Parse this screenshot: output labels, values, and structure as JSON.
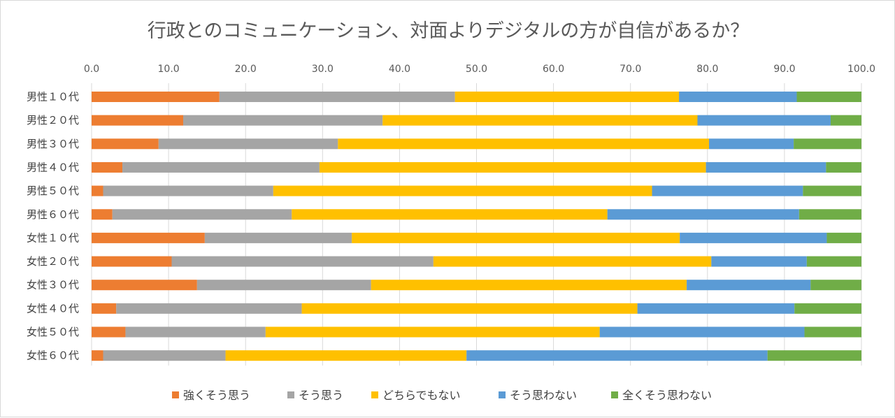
{
  "chart_data": {
    "type": "bar",
    "orientation": "horizontal",
    "stacked": true,
    "title": "行政とのコミュニケーション、対面よりデジタルの方が自信があるか？",
    "xlabel": "",
    "ylabel": "",
    "xlim": [
      0,
      100
    ],
    "x_ticks": [
      "0.0",
      "10.0",
      "20.0",
      "30.0",
      "40.0",
      "50.0",
      "60.0",
      "70.0",
      "80.0",
      "90.0",
      "100.0"
    ],
    "x_axis_position": "top",
    "grid": true,
    "legend_position": "bottom",
    "categories": [
      "男性１０代",
      "男性２０代",
      "男性３０代",
      "男性４０代",
      "男性５０代",
      "男性６０代",
      "女性１０代",
      "女性２０代",
      "女性３０代",
      "女性４０代",
      "女性５０代",
      "女性６０代"
    ],
    "series": [
      {
        "name": "強くそう思う",
        "color": "#ed7d31",
        "values": [
          16.6,
          11.9,
          8.7,
          4.0,
          1.5,
          2.7,
          14.7,
          10.4,
          13.7,
          3.2,
          4.4,
          1.5
        ]
      },
      {
        "name": "そう思う",
        "color": "#a5a5a5",
        "values": [
          30.6,
          25.9,
          23.3,
          25.6,
          22.1,
          23.3,
          19.1,
          34.0,
          22.6,
          24.1,
          18.2,
          15.9
        ]
      },
      {
        "name": "どちらでもない",
        "color": "#ffc000",
        "values": [
          29.1,
          40.9,
          48.2,
          50.2,
          49.2,
          41.0,
          42.6,
          36.1,
          41.0,
          43.6,
          43.4,
          31.3
        ]
      },
      {
        "name": "そう思わない",
        "color": "#5b9bd5",
        "values": [
          15.3,
          17.3,
          11.0,
          15.6,
          19.6,
          24.9,
          19.1,
          12.4,
          16.1,
          20.4,
          26.6,
          39.1
        ]
      },
      {
        "name": "全くそう思わない",
        "color": "#70ad47",
        "values": [
          8.4,
          4.0,
          8.8,
          4.6,
          7.6,
          8.1,
          4.5,
          7.1,
          6.6,
          8.7,
          7.4,
          12.2
        ]
      }
    ]
  }
}
